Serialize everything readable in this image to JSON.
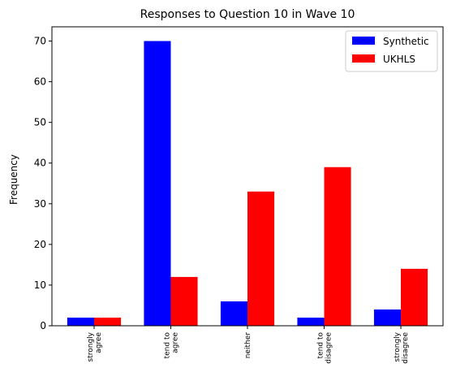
{
  "chart_data": {
    "type": "bar",
    "title": "Responses to Question 10 in Wave 10",
    "xlabel": "",
    "ylabel": "Frequency",
    "ylim": [
      0,
      73.5
    ],
    "yticks": [
      0,
      10,
      20,
      30,
      40,
      50,
      60,
      70
    ],
    "categories": [
      [
        "strongly",
        "agree"
      ],
      [
        "tend to",
        "agree"
      ],
      [
        "neither"
      ],
      [
        "tend to",
        "disagree"
      ],
      [
        "strongly",
        "disagree"
      ]
    ],
    "series": [
      {
        "name": "Synthetic",
        "color": "#0000ff",
        "values": [
          2,
          70,
          6,
          2,
          4
        ]
      },
      {
        "name": "UKHLS",
        "color": "#ff0000",
        "values": [
          2,
          12,
          33,
          39,
          14
        ]
      }
    ],
    "legend_position": "top-right",
    "grid": false
  }
}
